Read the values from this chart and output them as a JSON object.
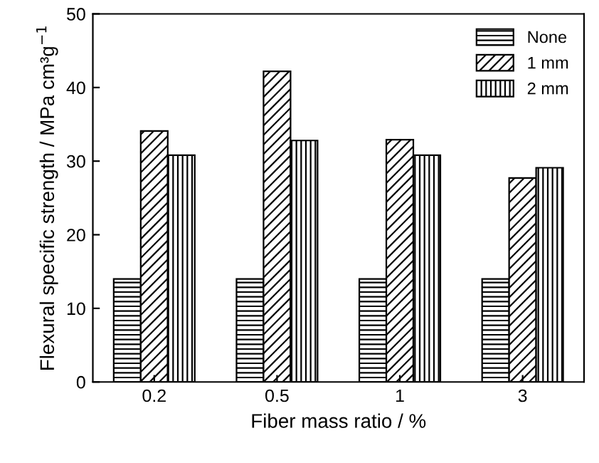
{
  "chart_data": {
    "type": "bar",
    "xlabel": "Fiber mass ratio / %",
    "ylabel": "Flexural specific strength / MPa cm³g$^{−1}$",
    "categories": [
      "0.2",
      "0.5",
      "1",
      "3"
    ],
    "series": [
      {
        "name": "None",
        "color": "#000000",
        "values": [
          14,
          14,
          14,
          14
        ]
      },
      {
        "name": "1 mm",
        "color": "#000000",
        "values": [
          34.1,
          42.2,
          32.9,
          27.7
        ]
      },
      {
        "name": "2 mm",
        "color": "#000000",
        "values": [
          30.8,
          32.8,
          30.8,
          29.1
        ]
      }
    ],
    "ylim": [
      0,
      50
    ],
    "yticks": [
      0,
      10,
      20,
      30,
      40,
      50
    ],
    "grid": false,
    "legend": "top right"
  }
}
